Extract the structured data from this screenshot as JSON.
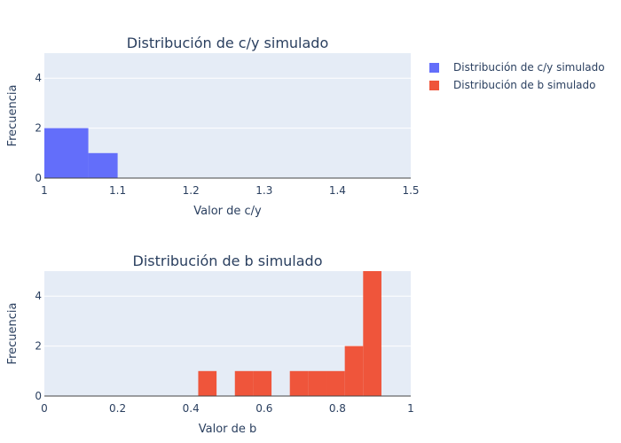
{
  "chart_data": [
    {
      "type": "bar",
      "title": "Distribución de c/y simulado",
      "xlabel": "Valor de c/y",
      "ylabel": "Frecuencia",
      "xlim": [
        1,
        1.5
      ],
      "ylim": [
        0,
        5
      ],
      "x_ticks": [
        1,
        1.1,
        1.2,
        1.3,
        1.4,
        1.5
      ],
      "y_ticks": [
        0,
        2,
        4
      ],
      "grid": true,
      "series": [
        {
          "name": "Distribución de c/y simulado",
          "color": "#636efa",
          "bins": [
            {
              "x0": 1.0,
              "x1": 1.06,
              "count": 2
            },
            {
              "x0": 1.06,
              "x1": 1.1,
              "count": 1
            }
          ]
        }
      ]
    },
    {
      "type": "bar",
      "title": "Distribución de b simulado",
      "xlabel": "Valor de b",
      "ylabel": "Frecuencia",
      "xlim": [
        0,
        1
      ],
      "ylim": [
        0,
        5
      ],
      "x_ticks": [
        0,
        0.2,
        0.4,
        0.6,
        0.8,
        1
      ],
      "y_ticks": [
        0,
        2,
        4
      ],
      "grid": true,
      "series": [
        {
          "name": "Distribución de b simulado",
          "color": "#ef553b",
          "bins": [
            {
              "x0": 0.42,
              "x1": 0.47,
              "count": 1
            },
            {
              "x0": 0.52,
              "x1": 0.57,
              "count": 1
            },
            {
              "x0": 0.57,
              "x1": 0.62,
              "count": 1
            },
            {
              "x0": 0.67,
              "x1": 0.72,
              "count": 1
            },
            {
              "x0": 0.72,
              "x1": 0.77,
              "count": 1
            },
            {
              "x0": 0.77,
              "x1": 0.82,
              "count": 1
            },
            {
              "x0": 0.82,
              "x1": 0.87,
              "count": 2
            },
            {
              "x0": 0.87,
              "x1": 0.92,
              "count": 5
            }
          ]
        }
      ]
    }
  ],
  "legend": {
    "position": "top-right",
    "items": [
      {
        "label": "Distribución de c/y simulado",
        "color": "#636efa"
      },
      {
        "label": "Distribución de b simulado",
        "color": "#ef553b"
      }
    ]
  }
}
